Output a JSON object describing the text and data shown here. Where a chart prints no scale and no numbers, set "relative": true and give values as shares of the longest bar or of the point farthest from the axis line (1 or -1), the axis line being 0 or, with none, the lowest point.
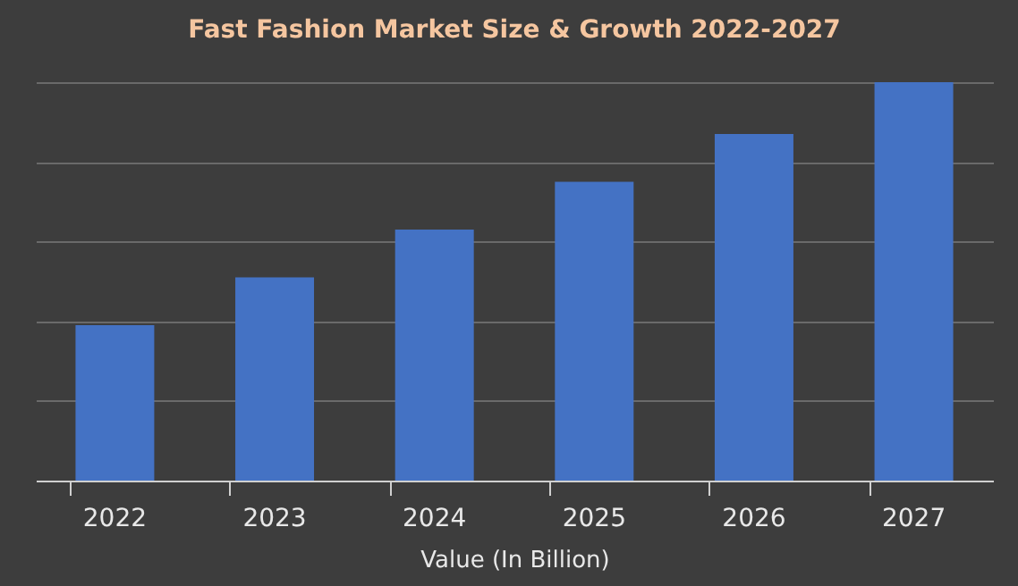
{
  "chart_data": {
    "type": "bar",
    "title": "Fast Fashion Market Size & Growth 2022-2027",
    "xlabel": "Value (In Billion)",
    "categories": [
      "2022",
      "2023",
      "2024",
      "2025",
      "2026",
      "2027"
    ],
    "values": [
      0.39,
      0.51,
      0.63,
      0.75,
      0.87,
      1
    ],
    "color": "#4472c4",
    "relative": true,
    "grid": "y"
  }
}
